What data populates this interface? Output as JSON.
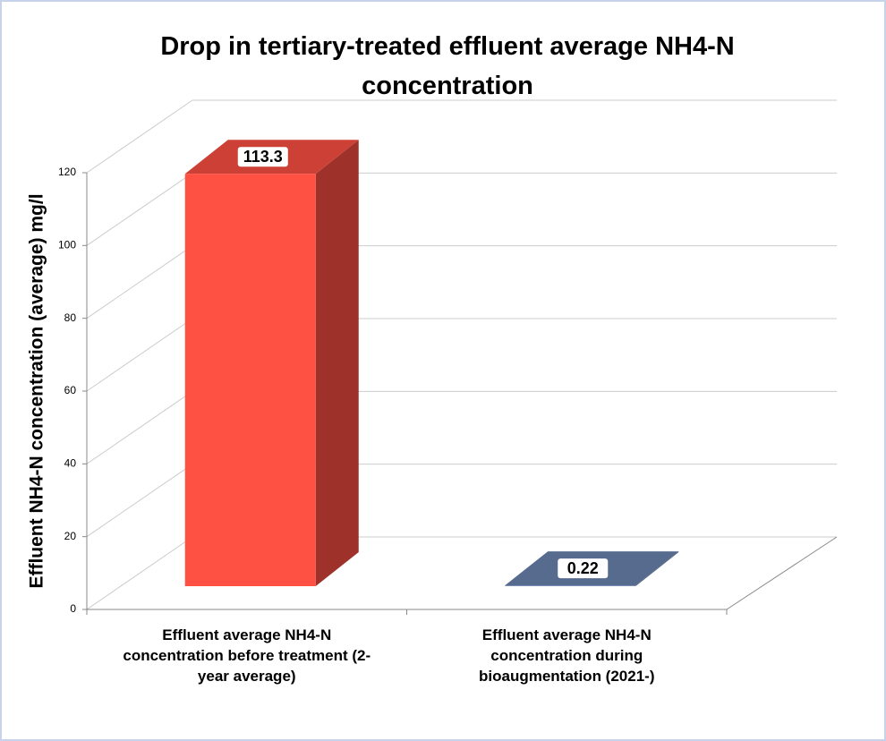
{
  "chart_data": {
    "type": "bar3d",
    "title": "Drop in tertiary-treated effluent average NH4-N concentration",
    "y_label": "Effluent NH4-N concentration (average) mg/l",
    "categories": [
      "Effluent average NH4-N concentration before treatment (2-year average)",
      "Effluent average NH4-N concentration during bioaugmentation (2021-)"
    ],
    "values": [
      113.3,
      0.22
    ],
    "colors": [
      "#ff5044",
      "#6b86b0"
    ],
    "ylim": [
      0,
      120
    ],
    "yticks": [
      0,
      20,
      40,
      60,
      80,
      100,
      120
    ],
    "grid": true
  }
}
